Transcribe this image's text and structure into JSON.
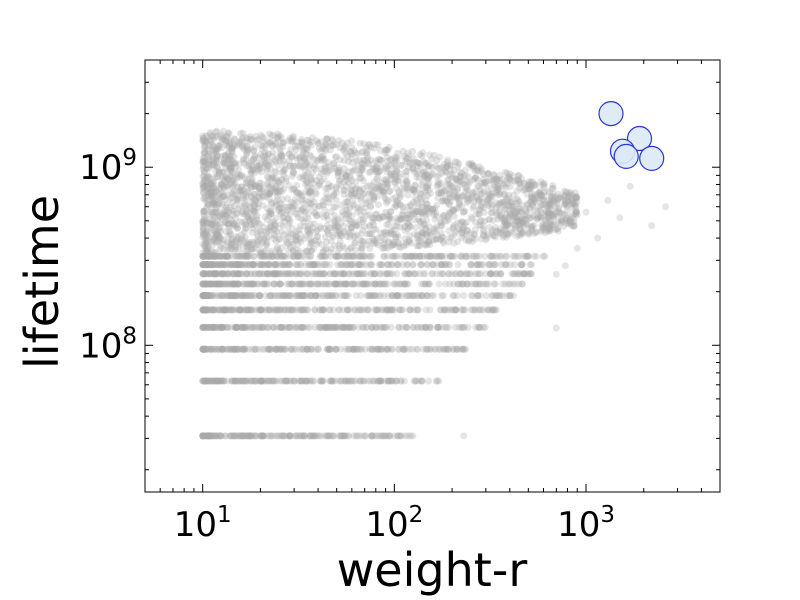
{
  "chart_data": {
    "type": "scatter",
    "title": "",
    "xlabel": "weight-r",
    "ylabel": "lifetime",
    "x_scale": "log",
    "y_scale": "log",
    "xlim": [
      5,
      5000
    ],
    "ylim": [
      15000000,
      4000000000
    ],
    "grid": false,
    "legend": "none",
    "x_ticks": [
      {
        "value": 10,
        "base": "10",
        "exp": "1"
      },
      {
        "value": 100,
        "base": "10",
        "exp": "2"
      },
      {
        "value": 1000,
        "base": "10",
        "exp": "3"
      }
    ],
    "y_ticks": [
      {
        "value": 100000000,
        "base": "10",
        "exp": "8"
      },
      {
        "value": 1000000000,
        "base": "10",
        "exp": "9"
      }
    ],
    "background_series": {
      "color": "#a9a9a9",
      "opacity": 0.3,
      "bands": [
        {
          "y": 31000000,
          "x_min": 10,
          "x_max": 125
        },
        {
          "y": 63000000,
          "x_min": 10,
          "x_max": 175
        },
        {
          "y": 95000000,
          "x_min": 10,
          "x_max": 240
        },
        {
          "y": 126000000,
          "x_min": 10,
          "x_max": 300
        },
        {
          "y": 158000000,
          "x_min": 10,
          "x_max": 360
        },
        {
          "y": 190000000,
          "x_min": 10,
          "x_max": 420
        },
        {
          "y": 221000000,
          "x_min": 10,
          "x_max": 470
        },
        {
          "y": 252000000,
          "x_min": 10,
          "x_max": 520
        },
        {
          "y": 284000000,
          "x_min": 10,
          "x_max": 560
        },
        {
          "y": 316000000,
          "x_min": 10,
          "x_max": 620
        }
      ],
      "cloud": {
        "x_min": 10,
        "x_max": 900,
        "y_min": 320000000,
        "y_max": 1600000000
      },
      "outliers": [
        [
          2600,
          600000000
        ],
        [
          2200,
          470000000
        ],
        [
          1700,
          780000000
        ],
        [
          1500,
          520000000
        ],
        [
          1300,
          650000000
        ],
        [
          1150,
          400000000
        ],
        [
          1000,
          560000000
        ],
        [
          900,
          350000000
        ],
        [
          780,
          280000000
        ],
        [
          700,
          250000000
        ],
        [
          230,
          31000000
        ],
        [
          700,
          125000000
        ]
      ]
    },
    "highlight_series": {
      "fill": "#dbeaf7",
      "stroke": "#2b35d6",
      "points": [
        {
          "x": 1350,
          "y": 2000000000
        },
        {
          "x": 1900,
          "y": 1450000000
        },
        {
          "x": 1550,
          "y": 1230000000
        },
        {
          "x": 1620,
          "y": 1150000000
        },
        {
          "x": 2200,
          "y": 1120000000
        }
      ]
    }
  }
}
